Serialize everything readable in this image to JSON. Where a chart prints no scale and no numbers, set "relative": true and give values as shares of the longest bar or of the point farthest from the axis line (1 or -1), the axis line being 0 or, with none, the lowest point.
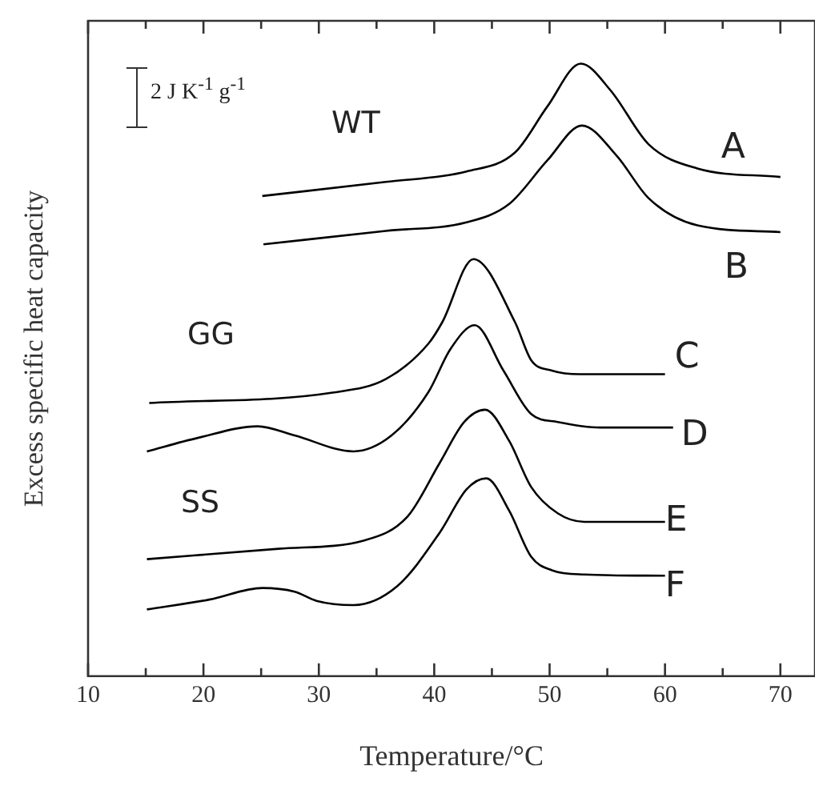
{
  "chart_data": {
    "type": "line",
    "relative": true,
    "xlabel": "Temperature/°C",
    "ylabel": "Excess specific heat capacity",
    "xlim": [
      10,
      73
    ],
    "xticks": [
      10,
      {
        "value": 15,
        "label": null
      },
      20,
      {
        "value": 25,
        "label": null
      },
      30,
      {
        "value": 35,
        "label": null
      },
      40,
      {
        "value": 45,
        "label": null
      },
      50,
      {
        "value": 55,
        "label": null
      },
      60,
      {
        "value": 65,
        "label": null
      },
      70
    ],
    "annotations": [
      "2 J K$^{-1}$ g$^{-1}$",
      "WT",
      "GG",
      "SS"
    ],
    "grid": false,
    "legend": false,
    "marker": "none",
    "line_style": "solid",
    "series": [
      {
        "name": "A",
        "color": "#000000",
        "x": [
          25.1,
          35.8,
          42.8,
          47.0,
          49.8,
          52.7,
          55.3,
          58.6,
          62.8,
          70
        ],
        "values": [
          0.784,
          0.807,
          0.824,
          0.855,
          0.93,
          1.0,
          0.956,
          0.868,
          0.829,
          0.815
        ]
      },
      {
        "name": "B",
        "color": "#000000",
        "x": [
          25.2,
          35.8,
          42.8,
          46.5,
          49.8,
          52.8,
          55.8,
          58.6,
          62.8,
          70
        ],
        "values": [
          0.705,
          0.727,
          0.741,
          0.771,
          0.842,
          0.899,
          0.85,
          0.78,
          0.736,
          0.725
        ]
      },
      {
        "name": "C",
        "color": "#000000",
        "x": [
          15.3,
          31.2,
          35.8,
          39.5,
          40.7,
          43.4,
          47.0,
          48.4,
          50.2,
          52.6,
          60
        ],
        "values": [
          0.446,
          0.463,
          0.485,
          0.543,
          0.578,
          0.681,
          0.578,
          0.516,
          0.499,
          0.493,
          0.493
        ]
      },
      {
        "name": "D",
        "color": "#000000",
        "x": [
          15.1,
          19.5,
          24.7,
          27.9,
          33.0,
          36.3,
          39.5,
          41.4,
          43.5,
          46.0,
          48.4,
          50.7,
          54.4,
          60.7
        ],
        "values": [
          0.367,
          0.389,
          0.408,
          0.393,
          0.367,
          0.393,
          0.464,
          0.534,
          0.573,
          0.499,
          0.428,
          0.415,
          0.406,
          0.406
        ]
      },
      {
        "name": "E",
        "color": "#000000",
        "x": [
          15.1,
          26.5,
          34.0,
          37.7,
          40.5,
          42.6,
          44.4,
          46.5,
          48.4,
          50.7,
          53.0,
          60
        ],
        "values": [
          0.191,
          0.208,
          0.222,
          0.261,
          0.349,
          0.415,
          0.435,
          0.384,
          0.309,
          0.266,
          0.252,
          0.252
        ]
      },
      {
        "name": "F",
        "color": "#000000",
        "x": [
          15.1,
          20.5,
          25.1,
          27.9,
          29.8,
          33.0,
          36.8,
          40.5,
          42.8,
          44.5,
          46.5,
          48.4,
          50.2,
          53.0,
          60
        ],
        "values": [
          0.109,
          0.125,
          0.144,
          0.138,
          0.123,
          0.116,
          0.147,
          0.235,
          0.305,
          0.323,
          0.27,
          0.195,
          0.173,
          0.166,
          0.164
        ]
      }
    ]
  }
}
